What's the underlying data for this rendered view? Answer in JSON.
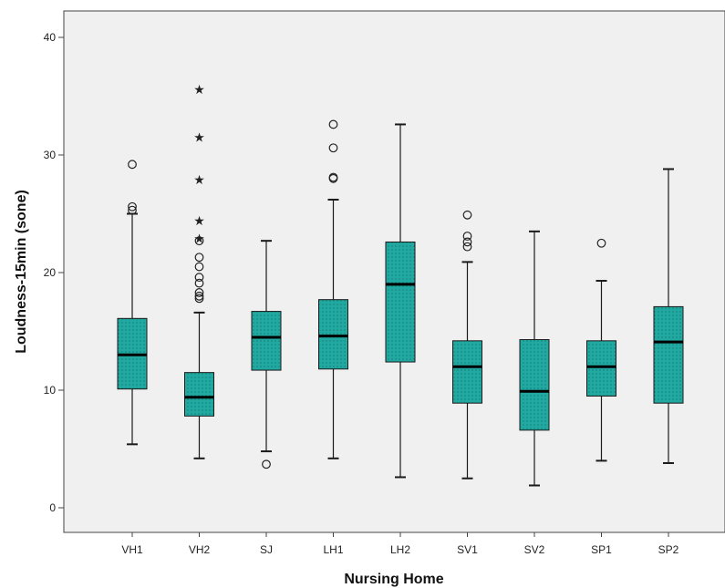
{
  "chart_data": {
    "type": "boxplot",
    "xlabel": "Nursing Home",
    "ylabel": "Loudness-15min (sone)",
    "ylim": [
      -2,
      43
    ],
    "yticks": [
      0,
      10,
      20,
      30,
      40
    ],
    "grid": false,
    "colors": {
      "plot_background": "#f0f0f0",
      "box_fill": "#21a8a0",
      "box_stroke": "#1a1a1a",
      "median": "#000000",
      "outlier": "#222222"
    },
    "categories": [
      "VH1",
      "VH2",
      "SJ",
      "LH1",
      "LH2",
      "SV1",
      "SV2",
      "SP1",
      "SP2"
    ],
    "boxes": [
      {
        "label": "VH1",
        "min": 5.4,
        "q1": 10.1,
        "median": 13.0,
        "q3": 16.1,
        "max": 25.0,
        "outliers": [
          25.3,
          25.6,
          29.2
        ],
        "extremes": []
      },
      {
        "label": "VH2",
        "min": 4.2,
        "q1": 7.8,
        "median": 9.4,
        "q3": 11.5,
        "max": 16.6,
        "outliers": [
          17.8,
          18.0,
          18.3,
          19.1,
          19.6,
          20.5,
          21.3,
          22.7
        ],
        "extremes": [
          22.9,
          24.4,
          27.9,
          31.5,
          35.6
        ]
      },
      {
        "label": "SJ",
        "min": 4.8,
        "q1": 11.7,
        "median": 14.5,
        "q3": 16.7,
        "max": 22.7,
        "outliers": [
          3.7
        ],
        "extremes": []
      },
      {
        "label": "LH1",
        "min": 4.2,
        "q1": 11.8,
        "median": 14.6,
        "q3": 17.7,
        "max": 26.2,
        "outliers": [
          28.0,
          28.1,
          30.6,
          32.6
        ],
        "extremes": []
      },
      {
        "label": "LH2",
        "min": 2.6,
        "q1": 12.4,
        "median": 19.0,
        "q3": 22.6,
        "max": 32.6,
        "outliers": [],
        "extremes": []
      },
      {
        "label": "SV1",
        "min": 2.5,
        "q1": 8.9,
        "median": 12.0,
        "q3": 14.2,
        "max": 20.9,
        "outliers": [
          22.2,
          22.6,
          23.1,
          24.9
        ],
        "extremes": []
      },
      {
        "label": "SV2",
        "min": 1.9,
        "q1": 6.6,
        "median": 9.9,
        "q3": 14.3,
        "max": 23.5,
        "outliers": [],
        "extremes": []
      },
      {
        "label": "SP1",
        "min": 4.0,
        "q1": 9.5,
        "median": 12.0,
        "q3": 14.2,
        "max": 19.3,
        "outliers": [
          22.5
        ],
        "extremes": []
      },
      {
        "label": "SP2",
        "min": 3.8,
        "q1": 8.9,
        "median": 14.1,
        "q3": 17.1,
        "max": 28.8,
        "outliers": [],
        "extremes": []
      }
    ]
  }
}
